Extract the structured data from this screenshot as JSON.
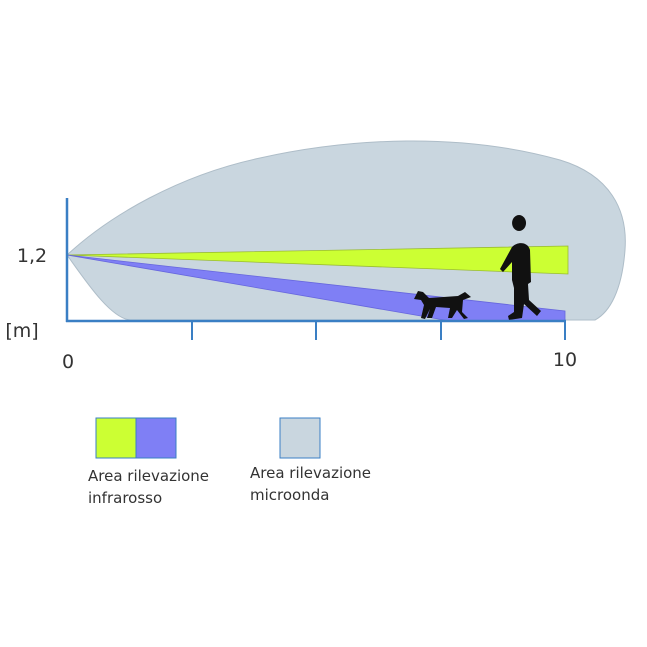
{
  "axes": {
    "height_label": "1,2",
    "unit_label": "[m]",
    "x_start_label": "0",
    "x_end_label": "10"
  },
  "legend": [
    {
      "lines": [
        "Area rilevazione",
        "infrarosso"
      ]
    },
    {
      "lines": [
        "Area rilevazione",
        "microonda"
      ]
    }
  ]
}
